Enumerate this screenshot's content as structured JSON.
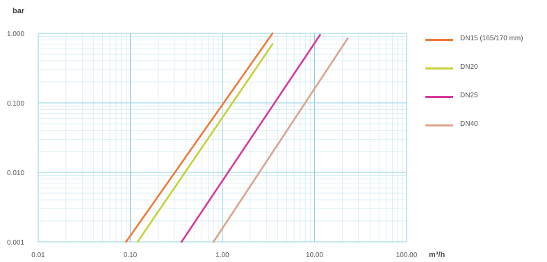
{
  "chart_data": {
    "type": "line",
    "title": "",
    "ylabel": "bar",
    "xlabel": "m³/h",
    "x_scale": "log",
    "y_scale": "log",
    "xlim": [
      0.01,
      100
    ],
    "ylim": [
      0.001,
      1
    ],
    "grid": true,
    "legend_position": "right",
    "x_ticks": [
      {
        "value": 0.01,
        "label": "0.01"
      },
      {
        "value": 0.1,
        "label": "0.10"
      },
      {
        "value": 1,
        "label": "1.00"
      },
      {
        "value": 10,
        "label": "10.00"
      },
      {
        "value": 100,
        "label": "100.00"
      }
    ],
    "y_ticks": [
      {
        "value": 0.001,
        "label": "0.001"
      },
      {
        "value": 0.01,
        "label": "0.010"
      },
      {
        "value": 0.1,
        "label": "0.100"
      },
      {
        "value": 1,
        "label": "1.000"
      }
    ],
    "series": [
      {
        "name": "DN15 (165/170 mm)",
        "color": "#f07a3a",
        "x": [
          0.09,
          3.5
        ],
        "y": [
          0.001,
          1.0
        ]
      },
      {
        "name": "DN20",
        "color": "#c8d13a",
        "x": [
          0.12,
          3.5
        ],
        "y": [
          0.001,
          0.7
        ]
      },
      {
        "name": "DN25",
        "color": "#d63a9e",
        "x": [
          0.36,
          11.5
        ],
        "y": [
          0.001,
          0.95
        ]
      },
      {
        "name": "DN40",
        "color": "#dba48e",
        "x": [
          0.8,
          23
        ],
        "y": [
          0.001,
          0.85
        ]
      }
    ]
  }
}
